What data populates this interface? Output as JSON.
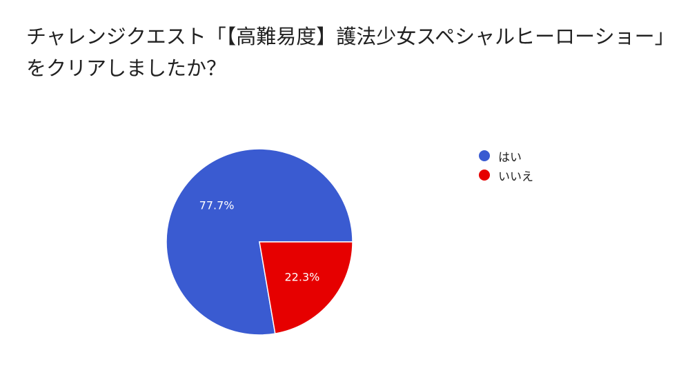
{
  "chart_data": {
    "type": "pie",
    "title": "チャレンジクエスト「【高難易度】護法少女スペシャルヒーローショー」をクリアしましたか？",
    "categories": [
      "はい",
      "いいえ"
    ],
    "values": [
      77.7,
      22.3
    ],
    "value_labels": [
      "77.7%",
      "22.3%"
    ],
    "colors": [
      "#3a5bd1",
      "#e60000"
    ],
    "legend_position": "right"
  }
}
